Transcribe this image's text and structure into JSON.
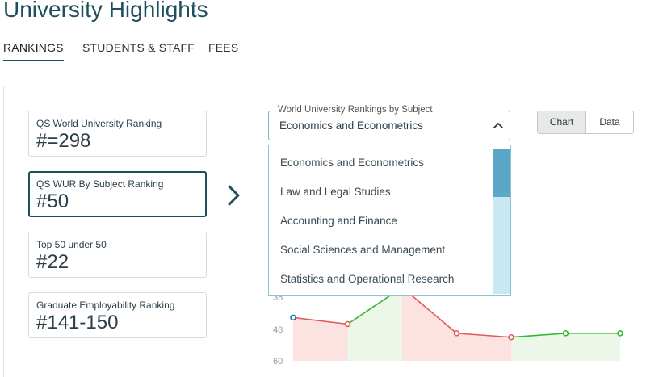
{
  "header": {
    "title": "University Highlights"
  },
  "tabs": [
    {
      "label": "RANKINGS",
      "active": true
    },
    {
      "label": "STUDENTS & STAFF",
      "active": false
    },
    {
      "label": "FEES",
      "active": false
    }
  ],
  "rankings": [
    {
      "label": "QS World University Ranking",
      "value": "#=298",
      "active": false
    },
    {
      "label": "QS WUR By Subject Ranking",
      "value": "#50",
      "active": true
    },
    {
      "label": "Top 50 under 50",
      "value": "#22",
      "active": false
    },
    {
      "label": "Graduate Employability Ranking",
      "value": "#141-150",
      "active": false
    }
  ],
  "subject_select": {
    "legend": "World University Rankings by Subject",
    "value": "Economics and Econometrics",
    "options": [
      "Economics and Econometrics",
      "Law and Legal Studies",
      "Accounting and Finance",
      "Social Sciences and Management",
      "Statistics and Operational Research"
    ]
  },
  "view_toggle": {
    "chart_label": "Chart",
    "data_label": "Data",
    "selected": "Chart"
  },
  "icons": {
    "next": "chevron-right-icon",
    "caret": "chevron-up-icon"
  },
  "colors": {
    "accent": "#1f4e5f",
    "up": "#2eb82e",
    "down": "#e05a5a",
    "up_fill": "#ecf7ea",
    "down_fill": "#fde2e2",
    "scroll_thumb": "#5aa7c8",
    "scroll_track": "#c8e8f3"
  },
  "chart_data": {
    "type": "line",
    "y_ticks": [
      "36",
      "48",
      "60"
    ],
    "ylim": [
      60,
      36
    ],
    "values": [
      43.5,
      46,
      32,
      49.5,
      51,
      49.5,
      49.5
    ],
    "segment_trend": [
      "down",
      "up",
      "down",
      "down",
      "up",
      "flat"
    ],
    "grid": false
  }
}
